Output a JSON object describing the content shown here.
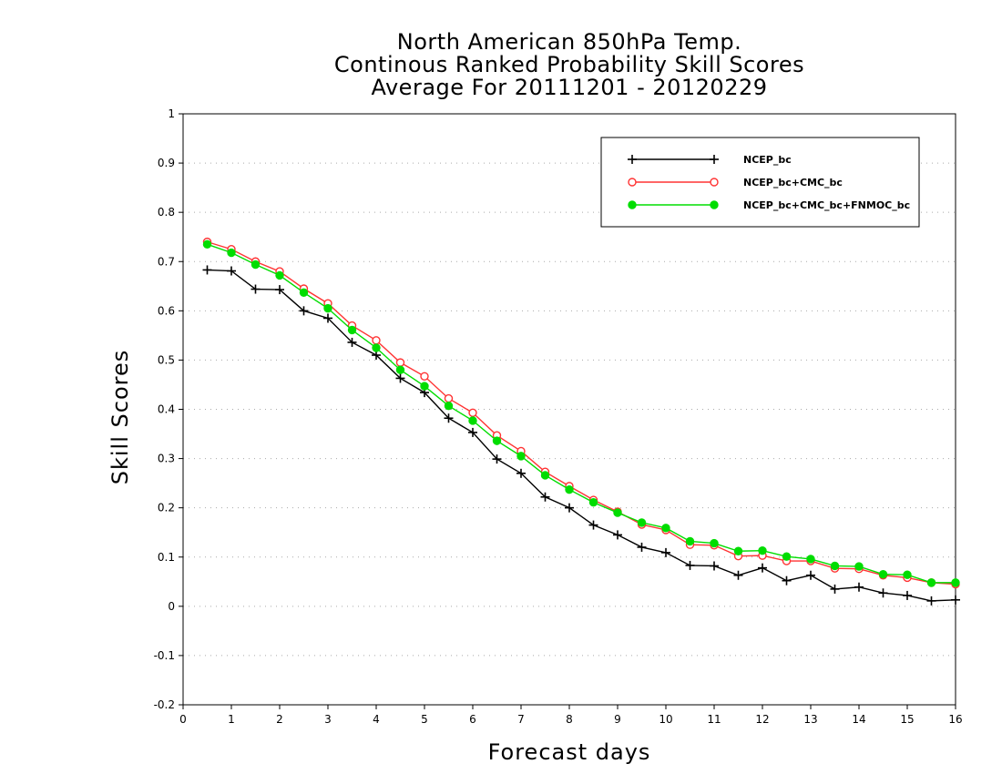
{
  "chart_data": {
    "type": "line",
    "title": [
      "North American 850hPa Temp.",
      "Continous Ranked Probability Skill Scores",
      "Average For 20111201 - 20120229"
    ],
    "xlabel": "Forecast days",
    "ylabel": "Skill Scores",
    "xlim": [
      0,
      16
    ],
    "ylim": [
      -0.2,
      1
    ],
    "xticks": [
      "0",
      "1",
      "2",
      "3",
      "4",
      "5",
      "6",
      "7",
      "8",
      "9",
      "10",
      "11",
      "12",
      "13",
      "14",
      "15",
      "16"
    ],
    "yticks": [
      "-0.2",
      "-0.1",
      "0",
      "0.1",
      "0.2",
      "0.3",
      "0.4",
      "0.5",
      "0.6",
      "0.7",
      "0.8",
      "0.9",
      "1"
    ],
    "grid": "horizontal dotted",
    "legend_position": "top-right",
    "x": [
      0.5,
      1,
      1.5,
      2,
      2.5,
      3,
      3.5,
      4,
      4.5,
      5,
      5.5,
      6,
      6.5,
      7,
      7.5,
      8,
      8.5,
      9,
      9.5,
      10,
      10.5,
      11,
      11.5,
      12,
      12.5,
      13,
      13.5,
      14,
      14.5,
      15,
      15.5,
      16
    ],
    "series": [
      {
        "name": "NCEP_bc",
        "color": "#000000",
        "marker": "plus",
        "values": [
          0.683,
          0.681,
          0.644,
          0.643,
          0.6,
          0.585,
          0.536,
          0.51,
          0.463,
          0.434,
          0.382,
          0.353,
          0.299,
          0.27,
          0.222,
          0.2,
          0.165,
          0.145,
          0.12,
          0.109,
          0.083,
          0.082,
          0.063,
          0.078,
          0.052,
          0.063,
          0.035,
          0.039,
          0.027,
          0.022,
          0.011,
          0.013
        ]
      },
      {
        "name": "NCEP_bc+CMC_bc",
        "color": "#ff3333",
        "marker": "open-circle",
        "values": [
          0.74,
          0.725,
          0.7,
          0.68,
          0.645,
          0.615,
          0.57,
          0.54,
          0.495,
          0.467,
          0.422,
          0.393,
          0.347,
          0.315,
          0.273,
          0.244,
          0.216,
          0.192,
          0.166,
          0.155,
          0.125,
          0.124,
          0.102,
          0.103,
          0.092,
          0.092,
          0.077,
          0.076,
          0.063,
          0.058,
          0.048,
          0.045
        ]
      },
      {
        "name": "NCEP_bc+CMC_bc+FNMOC_bc",
        "color": "#00dd00",
        "marker": "filled-circle",
        "values": [
          0.735,
          0.718,
          0.694,
          0.672,
          0.637,
          0.605,
          0.561,
          0.525,
          0.48,
          0.447,
          0.407,
          0.377,
          0.336,
          0.305,
          0.266,
          0.237,
          0.211,
          0.19,
          0.17,
          0.159,
          0.132,
          0.128,
          0.112,
          0.113,
          0.101,
          0.096,
          0.082,
          0.081,
          0.065,
          0.064,
          0.048,
          0.048
        ]
      }
    ]
  }
}
